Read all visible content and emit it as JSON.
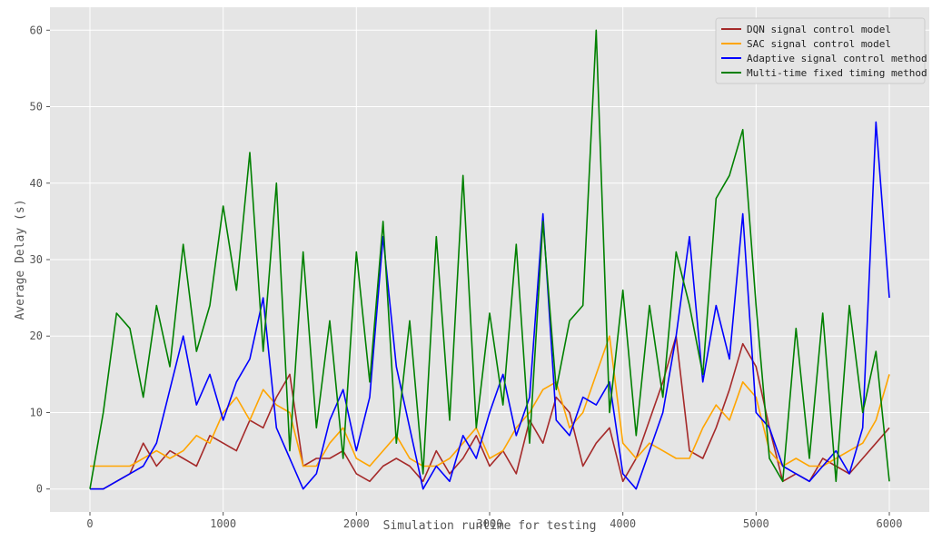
{
  "chart_data": {
    "type": "line",
    "title": "",
    "xlabel": "Simulation runtime for testing",
    "ylabel": "Average Delay (s)",
    "xlim": [
      -300,
      6300
    ],
    "ylim": [
      -3,
      63
    ],
    "x_ticks": [
      0,
      1000,
      2000,
      3000,
      4000,
      5000,
      6000
    ],
    "y_ticks": [
      0,
      10,
      20,
      30,
      40,
      50,
      60
    ],
    "grid": true,
    "legend_position": "top-right",
    "background": "#e5e5e5",
    "series": [
      {
        "name": "DQN signal control model",
        "color": "#a52a2a",
        "x": [
          0,
          100,
          200,
          300,
          400,
          500,
          600,
          700,
          800,
          900,
          1000,
          1100,
          1200,
          1300,
          1400,
          1500,
          1600,
          1700,
          1800,
          1900,
          2000,
          2100,
          2200,
          2300,
          2400,
          2500,
          2600,
          2700,
          2800,
          2900,
          3000,
          3100,
          3200,
          3300,
          3400,
          3500,
          3600,
          3700,
          3800,
          3900,
          4000,
          4100,
          4200,
          4300,
          4400,
          4500,
          4600,
          4700,
          4800,
          4900,
          5000,
          5100,
          5200,
          5300,
          5400,
          5500,
          5600,
          5700,
          5800,
          5900,
          6000
        ],
        "values": [
          0,
          0,
          1,
          2,
          6,
          3,
          5,
          4,
          3,
          7,
          6,
          5,
          9,
          8,
          12,
          15,
          3,
          4,
          4,
          5,
          2,
          1,
          3,
          4,
          3,
          1,
          5,
          2,
          4,
          7,
          3,
          5,
          2,
          9,
          6,
          12,
          10,
          3,
          6,
          8,
          1,
          4,
          9,
          14,
          20,
          5,
          4,
          8,
          13,
          19,
          16,
          8,
          1,
          2,
          1,
          4,
          3,
          2,
          4,
          6,
          8
        ]
      },
      {
        "name": "SAC signal control model",
        "color": "#ffa500",
        "x": [
          0,
          100,
          200,
          300,
          400,
          500,
          600,
          700,
          800,
          900,
          1000,
          1100,
          1200,
          1300,
          1400,
          1500,
          1600,
          1700,
          1800,
          1900,
          2000,
          2100,
          2200,
          2300,
          2400,
          2500,
          2600,
          2700,
          2800,
          2900,
          3000,
          3100,
          3200,
          3300,
          3400,
          3500,
          3600,
          3700,
          3800,
          3900,
          4000,
          4100,
          4200,
          4300,
          4400,
          4500,
          4600,
          4700,
          4800,
          4900,
          5000,
          5100,
          5200,
          5300,
          5400,
          5500,
          5600,
          5700,
          5800,
          5900,
          6000
        ],
        "values": [
          3,
          3,
          3,
          3,
          4,
          5,
          4,
          5,
          7,
          6,
          10,
          12,
          9,
          13,
          11,
          10,
          3,
          3,
          6,
          8,
          4,
          3,
          5,
          7,
          4,
          3,
          3,
          4,
          6,
          8,
          4,
          5,
          8,
          10,
          13,
          14,
          8,
          10,
          15,
          20,
          6,
          4,
          6,
          5,
          4,
          4,
          8,
          11,
          9,
          14,
          12,
          5,
          3,
          4,
          3,
          3,
          4,
          5,
          6,
          9,
          15
        ]
      },
      {
        "name": "Adaptive signal control method",
        "color": "#0000ff",
        "x": [
          0,
          100,
          200,
          300,
          400,
          500,
          600,
          700,
          800,
          900,
          1000,
          1100,
          1200,
          1300,
          1400,
          1500,
          1600,
          1700,
          1800,
          1900,
          2000,
          2100,
          2200,
          2300,
          2400,
          2500,
          2600,
          2700,
          2800,
          2900,
          3000,
          3100,
          3200,
          3300,
          3400,
          3500,
          3600,
          3700,
          3800,
          3900,
          4000,
          4100,
          4200,
          4300,
          4400,
          4500,
          4600,
          4700,
          4800,
          4900,
          5000,
          5100,
          5200,
          5300,
          5400,
          5500,
          5600,
          5700,
          5800,
          5900,
          6000
        ],
        "values": [
          0,
          0,
          1,
          2,
          3,
          6,
          13,
          20,
          11,
          15,
          9,
          14,
          17,
          25,
          8,
          4,
          0,
          2,
          9,
          13,
          5,
          12,
          33,
          16,
          8,
          0,
          3,
          1,
          7,
          4,
          10,
          15,
          7,
          12,
          36,
          9,
          7,
          12,
          11,
          14,
          2,
          0,
          5,
          10,
          20,
          33,
          14,
          24,
          17,
          36,
          10,
          8,
          3,
          2,
          1,
          3,
          5,
          2,
          8,
          48,
          25
        ]
      },
      {
        "name": "Multi-time fixed timing method",
        "color": "#008000",
        "x": [
          0,
          100,
          200,
          300,
          400,
          500,
          600,
          700,
          800,
          900,
          1000,
          1100,
          1200,
          1300,
          1400,
          1500,
          1600,
          1700,
          1800,
          1900,
          2000,
          2100,
          2200,
          2300,
          2400,
          2500,
          2600,
          2700,
          2800,
          2900,
          3000,
          3100,
          3200,
          3300,
          3400,
          3500,
          3600,
          3700,
          3800,
          3900,
          4000,
          4100,
          4200,
          4300,
          4400,
          4500,
          4600,
          4700,
          4800,
          4900,
          5000,
          5100,
          5200,
          5300,
          5400,
          5500,
          5600,
          5700,
          5800,
          5900,
          6000
        ],
        "values": [
          0,
          10,
          23,
          21,
          12,
          24,
          16,
          32,
          18,
          24,
          37,
          26,
          44,
          18,
          40,
          5,
          31,
          8,
          22,
          4,
          31,
          14,
          35,
          6,
          22,
          2,
          33,
          9,
          41,
          8,
          23,
          11,
          32,
          6,
          35,
          13,
          22,
          24,
          60,
          10,
          26,
          7,
          24,
          12,
          31,
          24,
          15,
          38,
          41,
          47,
          24,
          4,
          1,
          21,
          4,
          23,
          1,
          24,
          10,
          18,
          1
        ]
      }
    ]
  }
}
